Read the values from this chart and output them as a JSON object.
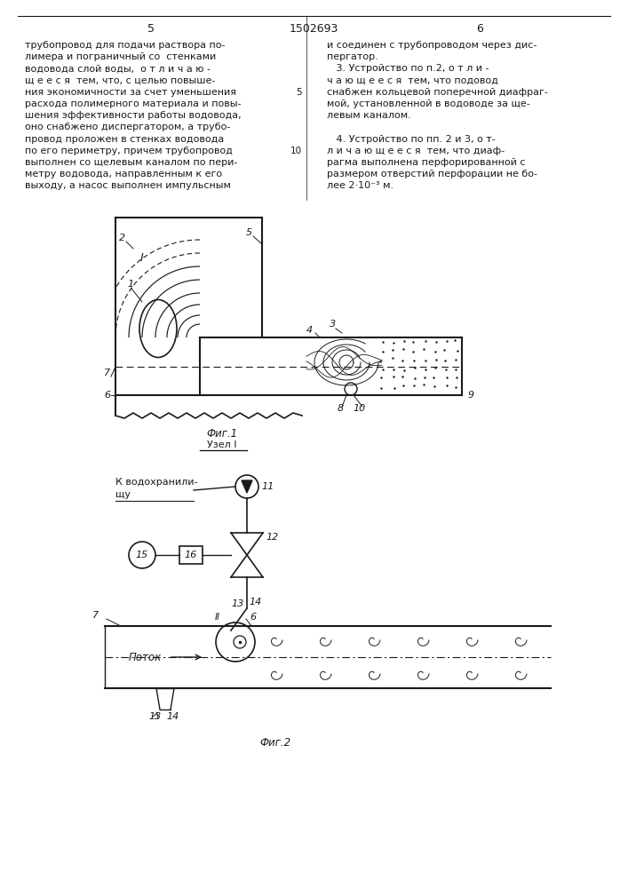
{
  "page_width": 7.07,
  "page_height": 10.0,
  "bg_color": "#ffffff",
  "line_color": "#1a1a1a",
  "text_color": "#1a1a1a",
  "header_text": "1502693",
  "page_left": "5",
  "page_right": "6",
  "col_left_lines": [
    "трубопровод для подачи раствора по-",
    "лимера и пограничный со  стенками",
    "водовода слой воды,  о т л и ч а ю -",
    "щ е е с я  тем, что, с целью повыше-",
    "ния экономичности за счет уменьшения",
    "расхода полимерного материала и повы-",
    "шения эффективности работы водовода,",
    "оно снабжено диспергатором, а трубо-",
    "провод проложен в стенках водовода",
    "по его периметру, причем трубопровод",
    "выполнен со щелевым каналом по пери-",
    "метру водовода, направленным к его",
    "выходу, а насос выполнен импульсным"
  ],
  "col_right_lines": [
    "и соединен с трубопроводом через дис-",
    "пергатор.",
    "   3. Устройство по п.2, о т л и -",
    "ч а ю щ е е с я  тем, что подовод",
    "снабжен кольцевой поперечной диафраг-",
    "мой, установленной в водоводе за ще-",
    "левым каналом.",
    "",
    "   4. Устройство по пп. 2 и 3, о т-",
    "л и ч а ю щ е е с я  тем, что диаф-",
    "рагма выполнена перфорированной с",
    "размером отверстий перфорации не бо-",
    "лее 2·10⁻³ м."
  ],
  "fig1_caption": "Фиг.1",
  "fig1_subcaption": "Узел I",
  "fig2_caption": "Фиг.2",
  "fig2_label_flow": "Поток",
  "fig2_label_reservoir": "К водохранили-",
  "fig2_label_reservoir2": "щу"
}
